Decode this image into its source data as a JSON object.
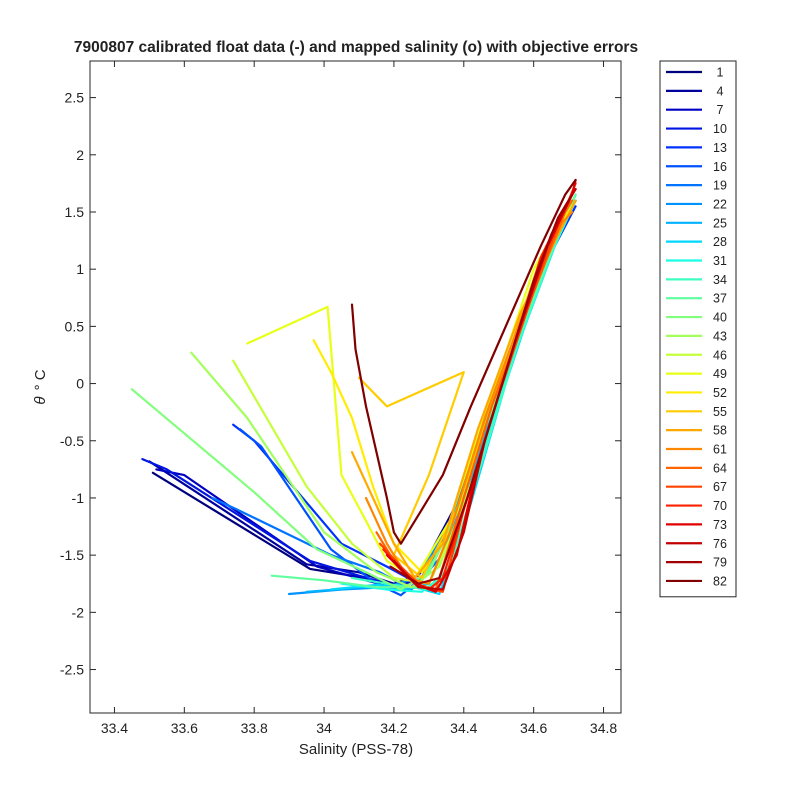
{
  "chart_data": {
    "type": "line",
    "title": "7900807 calibrated float data (-) and mapped salinity (o) with objective errors",
    "xlabel": "Salinity (PSS-78)",
    "ylabel_symbol": "θ",
    "ylabel_unit": "° C",
    "xlim": [
      33.33,
      34.85
    ],
    "ylim": [
      -2.88,
      2.82
    ],
    "xticks": [
      33.4,
      33.6,
      33.8,
      34,
      34.2,
      34.4,
      34.6,
      34.8
    ],
    "xtick_labels": [
      "33.4",
      "33.6",
      "33.8",
      "34",
      "34.2",
      "34.4",
      "34.6",
      "34.8"
    ],
    "yticks": [
      -2.5,
      -2,
      -1.5,
      -1,
      -0.5,
      0,
      0.5,
      1,
      1.5,
      2,
      2.5
    ],
    "ytick_labels": [
      "-2.5",
      "-2",
      "-1.5",
      "-1",
      "-0.5",
      "0",
      "0.5",
      "1",
      "1.5",
      "2",
      "2.5"
    ],
    "grid": false,
    "legend_position": "outside-right",
    "legend_entries": [
      "1",
      "4",
      "7",
      "10",
      "13",
      "16",
      "19",
      "22",
      "25",
      "28",
      "31",
      "34",
      "37",
      "40",
      "43",
      "46",
      "49",
      "52",
      "55",
      "58",
      "61",
      "64",
      "67",
      "70",
      "73",
      "76",
      "79",
      "82"
    ],
    "colors": [
      "#00007f",
      "#00009c",
      "#0000c0",
      "#0016e0",
      "#0032ff",
      "#0052ff",
      "#0073ff",
      "#0092ff",
      "#00b2ff",
      "#00d6ff",
      "#1bffe3",
      "#3dffc1",
      "#60ff9e",
      "#81ff7d",
      "#a3ff5b",
      "#c5ff39",
      "#e8ff16",
      "#ffed00",
      "#ffcc00",
      "#ffa900",
      "#ff8700",
      "#ff6600",
      "#ff4300",
      "#ff2100",
      "#e10000",
      "#c20000",
      "#a00000",
      "#800000"
    ],
    "series": [
      {
        "name": "1",
        "x": [
          33.51,
          33.96,
          34.12,
          34.2,
          34.28,
          34.4,
          34.52,
          34.65,
          34.72
        ],
        "y": [
          -0.78,
          -1.62,
          -1.7,
          -1.78,
          -1.7,
          -1.0,
          0.1,
          1.2,
          1.6
        ]
      },
      {
        "name": "4",
        "x": [
          33.5,
          33.95,
          34.1,
          34.2,
          34.27,
          34.38,
          34.5,
          34.63,
          34.71
        ],
        "y": [
          -0.68,
          -1.58,
          -1.65,
          -1.75,
          -1.68,
          -1.05,
          0.0,
          1.1,
          1.55
        ]
      },
      {
        "name": "7",
        "x": [
          33.52,
          33.6,
          33.98,
          34.12,
          34.22,
          34.3,
          34.4,
          34.52,
          34.64,
          34.71
        ],
        "y": [
          -0.75,
          -0.8,
          -1.6,
          -1.72,
          -1.8,
          -1.65,
          -1.0,
          0.1,
          1.2,
          1.5
        ]
      },
      {
        "name": "10",
        "x": [
          33.48,
          33.55,
          33.96,
          34.1,
          34.22,
          34.3,
          34.41,
          34.53,
          34.65,
          34.7
        ],
        "y": [
          -0.66,
          -0.75,
          -1.55,
          -1.68,
          -1.78,
          -1.6,
          -0.9,
          0.2,
          1.2,
          1.6
        ]
      },
      {
        "name": "13",
        "x": [
          33.74,
          33.8,
          34.05,
          34.18,
          34.27,
          34.42,
          34.55,
          34.66,
          34.72
        ],
        "y": [
          -0.36,
          -0.5,
          -1.4,
          -1.6,
          -1.75,
          -0.9,
          0.3,
          1.2,
          1.55
        ]
      },
      {
        "name": "16",
        "x": [
          33.76,
          33.82,
          34.02,
          34.15,
          34.22,
          34.28,
          34.36,
          34.5,
          34.63,
          34.7
        ],
        "y": [
          -0.4,
          -0.55,
          -1.45,
          -1.75,
          -1.85,
          -1.7,
          -1.2,
          0.0,
          1.1,
          1.5
        ]
      },
      {
        "name": "19",
        "x": [
          33.68,
          33.75,
          34.02,
          34.16,
          34.25,
          34.34,
          34.46,
          34.58,
          34.68,
          34.72
        ],
        "y": [
          -1.0,
          -1.1,
          -1.5,
          -1.65,
          -1.8,
          -1.5,
          -0.4,
          0.6,
          1.4,
          1.6
        ]
      },
      {
        "name": "22",
        "x": [
          33.9,
          34.05,
          34.18,
          34.26,
          34.35,
          34.48,
          34.6,
          34.7
        ],
        "y": [
          -1.84,
          -1.8,
          -1.78,
          -1.7,
          -1.3,
          -0.3,
          0.8,
          1.5
        ]
      },
      {
        "name": "25",
        "x": [
          33.95,
          34.12,
          34.24,
          34.3,
          34.38,
          34.5,
          34.62,
          34.72
        ],
        "y": [
          -1.82,
          -1.78,
          -1.8,
          -1.75,
          -1.2,
          -0.1,
          1.0,
          1.65
        ]
      },
      {
        "name": "28",
        "x": [
          34.02,
          34.15,
          34.26,
          34.33,
          34.42,
          34.52,
          34.64,
          34.71
        ],
        "y": [
          -1.8,
          -1.76,
          -1.78,
          -1.84,
          -1.05,
          0.0,
          1.1,
          1.55
        ]
      },
      {
        "name": "31",
        "x": [
          34.05,
          34.18,
          34.28,
          34.33,
          34.42,
          34.55,
          34.66,
          34.72
        ],
        "y": [
          -1.75,
          -1.8,
          -1.82,
          -1.7,
          -0.9,
          0.3,
          1.2,
          1.6
        ]
      },
      {
        "name": "34",
        "x": [
          34.08,
          34.2,
          34.3,
          34.36,
          34.44,
          34.56,
          34.67,
          34.71
        ],
        "y": [
          -1.7,
          -1.76,
          -1.8,
          -1.6,
          -0.8,
          0.4,
          1.3,
          1.55
        ]
      },
      {
        "name": "37",
        "x": [
          33.85,
          34.0,
          34.15,
          34.27,
          34.35,
          34.46,
          34.58,
          34.68,
          34.72
        ],
        "y": [
          -1.68,
          -1.72,
          -1.78,
          -1.78,
          -1.35,
          -0.4,
          0.6,
          1.4,
          1.65
        ]
      },
      {
        "name": "40",
        "x": [
          33.45,
          33.8,
          33.98,
          34.12,
          34.22,
          34.3,
          34.4,
          34.52,
          34.64,
          34.71
        ],
        "y": [
          -0.05,
          -0.95,
          -1.45,
          -1.65,
          -1.8,
          -1.65,
          -1.0,
          0.2,
          1.2,
          1.6
        ]
      },
      {
        "name": "43",
        "x": [
          33.62,
          33.78,
          34.0,
          34.15,
          34.25,
          34.33,
          34.43,
          34.55,
          34.66,
          34.72
        ],
        "y": [
          0.27,
          -0.3,
          -1.3,
          -1.65,
          -1.78,
          -1.6,
          -0.8,
          0.4,
          1.3,
          1.6
        ]
      },
      {
        "name": "46",
        "x": [
          33.74,
          33.95,
          34.08,
          34.2,
          34.3,
          34.4,
          34.52,
          34.64,
          34.71
        ],
        "y": [
          0.2,
          -0.9,
          -1.4,
          -1.7,
          -1.75,
          -1.1,
          0.1,
          1.2,
          1.55
        ]
      },
      {
        "name": "49",
        "x": [
          33.78,
          34.01,
          34.05,
          34.12,
          34.18,
          34.26,
          34.36,
          34.48,
          34.6,
          34.7
        ],
        "y": [
          0.35,
          0.67,
          -0.8,
          -1.2,
          -1.55,
          -1.7,
          -1.2,
          -0.1,
          1.0,
          1.55
        ]
      },
      {
        "name": "52",
        "x": [
          33.97,
          34.02,
          34.08,
          34.14,
          34.2,
          34.28,
          34.36,
          34.48,
          34.6,
          34.7
        ],
        "y": [
          0.38,
          0.1,
          -0.3,
          -0.9,
          -1.4,
          -1.65,
          -1.3,
          -0.2,
          0.9,
          1.5
        ]
      },
      {
        "name": "55",
        "x": [
          34.1,
          34.18,
          34.4,
          34.3,
          34.2,
          34.28,
          34.38,
          34.5,
          34.62,
          34.71
        ],
        "y": [
          0.05,
          -0.2,
          0.1,
          -0.8,
          -1.5,
          -1.7,
          -1.1,
          0.0,
          1.1,
          1.6
        ]
      },
      {
        "name": "58",
        "x": [
          34.08,
          34.14,
          34.2,
          34.26,
          34.34,
          34.44,
          34.56,
          34.67,
          34.72
        ],
        "y": [
          -0.6,
          -1.0,
          -1.4,
          -1.7,
          -1.4,
          -0.4,
          0.6,
          1.3,
          1.6
        ]
      },
      {
        "name": "61",
        "x": [
          34.12,
          34.18,
          34.24,
          34.3,
          34.36,
          34.46,
          34.58,
          34.68,
          34.71
        ],
        "y": [
          -1.0,
          -1.4,
          -1.7,
          -1.75,
          -1.3,
          -0.3,
          0.7,
          1.4,
          1.5
        ]
      },
      {
        "name": "64",
        "x": [
          34.15,
          34.2,
          34.26,
          34.32,
          34.38,
          34.48,
          34.6,
          34.69,
          34.71
        ],
        "y": [
          -1.3,
          -1.55,
          -1.75,
          -1.8,
          -1.2,
          -0.2,
          0.8,
          1.5,
          1.6
        ]
      },
      {
        "name": "67",
        "x": [
          34.16,
          34.22,
          34.28,
          34.34,
          34.4,
          34.5,
          34.61,
          34.69,
          34.72
        ],
        "y": [
          -1.4,
          -1.6,
          -1.78,
          -1.82,
          -1.1,
          -0.1,
          0.9,
          1.55,
          1.7
        ]
      },
      {
        "name": "70",
        "x": [
          34.17,
          34.24,
          34.3,
          34.34,
          34.42,
          34.52,
          34.62,
          34.7,
          34.72
        ],
        "y": [
          -1.45,
          -1.7,
          -1.8,
          -1.7,
          -0.9,
          0.1,
          1.1,
          1.6,
          1.75
        ]
      },
      {
        "name": "73",
        "x": [
          34.18,
          34.26,
          34.32,
          34.38,
          34.44,
          34.54,
          34.64,
          34.71,
          34.72
        ],
        "y": [
          -1.5,
          -1.75,
          -1.82,
          -1.5,
          -0.7,
          0.3,
          1.2,
          1.65,
          1.78
        ]
      },
      {
        "name": "76",
        "x": [
          34.2,
          34.27,
          34.34,
          34.4,
          34.46,
          34.56,
          34.65,
          34.7,
          34.72
        ],
        "y": [
          -1.55,
          -1.78,
          -1.8,
          -1.3,
          -0.5,
          0.5,
          1.3,
          1.6,
          1.7
        ]
      },
      {
        "name": "79",
        "x": [
          34.19,
          34.27,
          34.33,
          34.41,
          34.5,
          34.6,
          34.67,
          34.71
        ],
        "y": [
          -1.6,
          -1.75,
          -1.7,
          -1.0,
          -0.1,
          0.9,
          1.45,
          1.65
        ]
      },
      {
        "name": "82",
        "x": [
          34.08,
          34.09,
          34.12,
          34.15,
          34.18,
          34.2,
          34.22,
          34.25,
          34.28,
          34.34,
          34.42,
          34.52,
          34.62,
          34.69,
          34.72
        ],
        "y": [
          0.69,
          0.3,
          -0.2,
          -0.6,
          -1.0,
          -1.3,
          -1.4,
          -1.25,
          -1.1,
          -0.8,
          -0.2,
          0.5,
          1.2,
          1.65,
          1.78
        ]
      }
    ]
  }
}
